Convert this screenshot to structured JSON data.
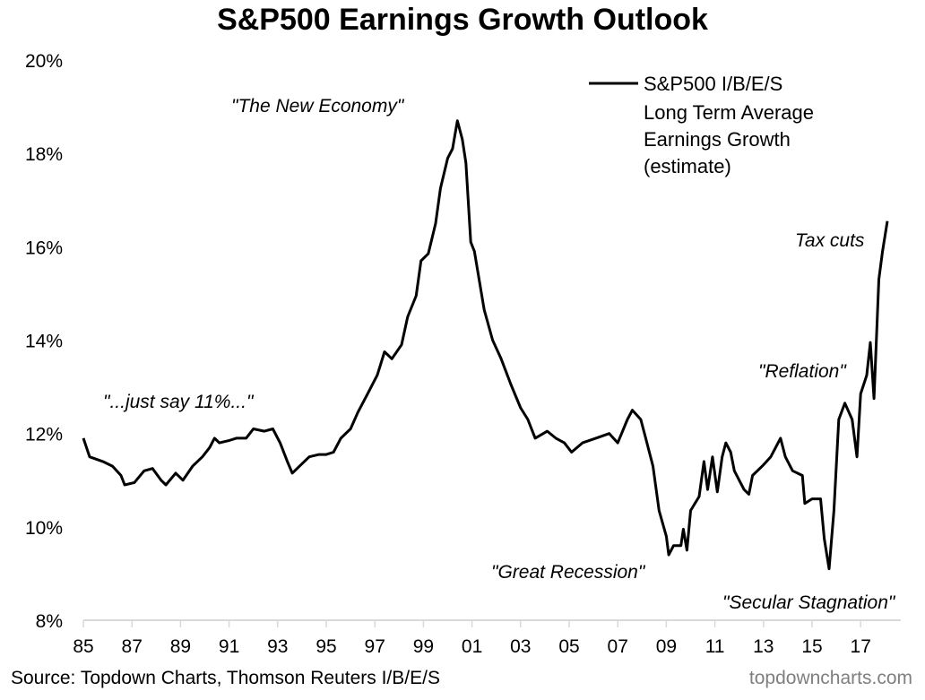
{
  "chart_data": {
    "type": "line",
    "title": "S&P500 Earnings Growth Outlook",
    "xlabel": "",
    "ylabel": "",
    "xlim": [
      1985,
      2018.2
    ],
    "ylim": [
      8,
      20
    ],
    "x_tick_labels": [
      "85",
      "87",
      "89",
      "91",
      "93",
      "95",
      "97",
      "99",
      "01",
      "03",
      "05",
      "07",
      "09",
      "11",
      "13",
      "15",
      "17"
    ],
    "y_tick_labels": [
      "8%",
      "10%",
      "12%",
      "14%",
      "16%",
      "18%",
      "20%"
    ],
    "grid": false,
    "legend": {
      "position": "top-right",
      "lines": [
        "S&P500 I/B/E/S",
        "Long Term Average",
        "Earnings Growth",
        "(estimate)"
      ]
    },
    "annotations": [
      "\"The New Economy\"",
      "\"...just say 11%...\"",
      "\"Great Recession\"",
      "\"Secular Stagnation\"",
      "\"Reflation\"",
      "Tax cuts"
    ],
    "series": [
      {
        "color": "#000000",
        "points": [
          [
            1985.0,
            11.9
          ],
          [
            1985.26,
            11.5
          ],
          [
            1985.8,
            11.4
          ],
          [
            1986.2,
            11.3
          ],
          [
            1986.55,
            11.1
          ],
          [
            1986.7,
            10.9
          ],
          [
            1987.1,
            10.95
          ],
          [
            1987.5,
            11.2
          ],
          [
            1987.85,
            11.25
          ],
          [
            1988.2,
            11.0
          ],
          [
            1988.4,
            10.9
          ],
          [
            1988.8,
            11.15
          ],
          [
            1989.1,
            11.0
          ],
          [
            1989.5,
            11.3
          ],
          [
            1989.9,
            11.5
          ],
          [
            1990.2,
            11.7
          ],
          [
            1990.4,
            11.9
          ],
          [
            1990.6,
            11.8
          ],
          [
            1991.0,
            11.85
          ],
          [
            1991.3,
            11.9
          ],
          [
            1991.7,
            11.9
          ],
          [
            1992.0,
            12.1
          ],
          [
            1992.45,
            12.05
          ],
          [
            1992.8,
            12.1
          ],
          [
            1993.1,
            11.8
          ],
          [
            1993.4,
            11.4
          ],
          [
            1993.6,
            11.15
          ],
          [
            1993.9,
            11.3
          ],
          [
            1994.3,
            11.5
          ],
          [
            1994.7,
            11.55
          ],
          [
            1995.0,
            11.55
          ],
          [
            1995.3,
            11.6
          ],
          [
            1995.6,
            11.9
          ],
          [
            1996.0,
            12.1
          ],
          [
            1996.3,
            12.45
          ],
          [
            1996.7,
            12.85
          ],
          [
            1997.1,
            13.25
          ],
          [
            1997.4,
            13.75
          ],
          [
            1997.7,
            13.6
          ],
          [
            1998.1,
            13.9
          ],
          [
            1998.35,
            14.5
          ],
          [
            1998.7,
            14.95
          ],
          [
            1998.9,
            15.7
          ],
          [
            1999.2,
            15.85
          ],
          [
            1999.5,
            16.5
          ],
          [
            1999.7,
            17.25
          ],
          [
            2000.0,
            17.9
          ],
          [
            2000.2,
            18.1
          ],
          [
            2000.4,
            18.7
          ],
          [
            2000.6,
            18.3
          ],
          [
            2000.75,
            17.8
          ],
          [
            2000.95,
            16.1
          ],
          [
            2001.1,
            15.9
          ],
          [
            2001.5,
            14.65
          ],
          [
            2001.85,
            14.0
          ],
          [
            2002.2,
            13.6
          ],
          [
            2002.6,
            13.05
          ],
          [
            2003.0,
            12.55
          ],
          [
            2003.3,
            12.3
          ],
          [
            2003.6,
            11.9
          ],
          [
            2004.1,
            12.05
          ],
          [
            2004.45,
            11.9
          ],
          [
            2004.8,
            11.8
          ],
          [
            2005.1,
            11.6
          ],
          [
            2005.55,
            11.8
          ],
          [
            2006.1,
            11.9
          ],
          [
            2006.65,
            12.0
          ],
          [
            2007.0,
            11.8
          ],
          [
            2007.4,
            12.3
          ],
          [
            2007.6,
            12.5
          ],
          [
            2007.95,
            12.3
          ],
          [
            2008.15,
            11.9
          ],
          [
            2008.45,
            11.3
          ],
          [
            2008.7,
            10.35
          ],
          [
            2009.0,
            9.8
          ],
          [
            2009.1,
            9.4
          ],
          [
            2009.3,
            9.6
          ],
          [
            2009.6,
            9.6
          ],
          [
            2009.7,
            9.95
          ],
          [
            2009.85,
            9.5
          ],
          [
            2010.0,
            10.35
          ],
          [
            2010.35,
            10.65
          ],
          [
            2010.55,
            11.4
          ],
          [
            2010.7,
            10.8
          ],
          [
            2010.9,
            11.5
          ],
          [
            2011.1,
            10.75
          ],
          [
            2011.3,
            11.5
          ],
          [
            2011.45,
            11.8
          ],
          [
            2011.65,
            11.6
          ],
          [
            2011.8,
            11.2
          ],
          [
            2012.2,
            10.8
          ],
          [
            2012.4,
            10.7
          ],
          [
            2012.55,
            11.1
          ],
          [
            2012.95,
            11.3
          ],
          [
            2013.3,
            11.5
          ],
          [
            2013.7,
            11.9
          ],
          [
            2013.9,
            11.5
          ],
          [
            2014.2,
            11.2
          ],
          [
            2014.6,
            11.1
          ],
          [
            2014.7,
            10.5
          ],
          [
            2015.0,
            10.6
          ],
          [
            2015.35,
            10.6
          ],
          [
            2015.5,
            9.75
          ],
          [
            2015.7,
            9.1
          ],
          [
            2015.9,
            10.35
          ],
          [
            2016.1,
            12.3
          ],
          [
            2016.35,
            12.65
          ],
          [
            2016.65,
            12.3
          ],
          [
            2016.85,
            11.5
          ],
          [
            2017.0,
            12.85
          ],
          [
            2017.25,
            13.25
          ],
          [
            2017.4,
            13.95
          ],
          [
            2017.55,
            12.75
          ],
          [
            2017.75,
            15.3
          ],
          [
            2017.9,
            15.9
          ],
          [
            2018.1,
            16.55
          ]
        ]
      }
    ]
  },
  "footer": {
    "source": "Source: Topdown Charts, Thomson Reuters I/B/E/S",
    "watermark": "topdowncharts.com"
  }
}
